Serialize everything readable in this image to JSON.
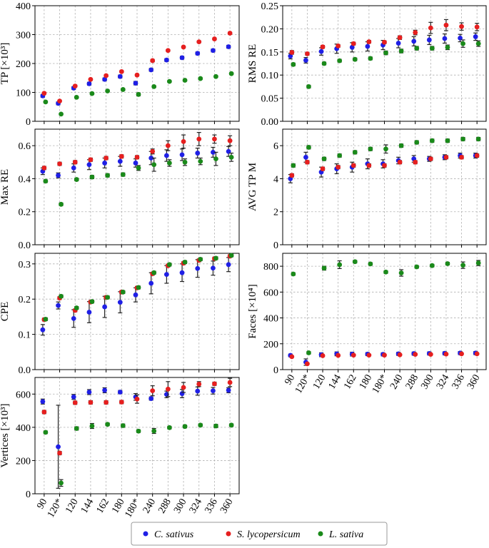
{
  "chart_data": {
    "type": "scatter",
    "legend": {
      "placement": "bottom-center",
      "items": [
        {
          "name": "C. sativus",
          "color": "#1f1fe6"
        },
        {
          "name": "S. lycopersicum",
          "color": "#e61f1f"
        },
        {
          "name": "L. sativa",
          "color": "#1a8a1a"
        }
      ]
    },
    "series_names": [
      "C. sativus",
      "S. lycopersicum",
      "L. sativa"
    ],
    "series_colors": [
      "#1f1fe6",
      "#e61f1f",
      "#1a8a1a"
    ],
    "x_categories": [
      "90",
      "120*",
      "120",
      "144",
      "162",
      "180",
      "180*",
      "240",
      "288",
      "300",
      "324",
      "336",
      "360"
    ],
    "panels": [
      {
        "id": "tp",
        "ylabel": "TP [×10³]",
        "ylim": [
          0,
          400
        ],
        "yticks": [
          0,
          100,
          200,
          300,
          400
        ],
        "ytick_labels": [
          "0",
          "100",
          "200",
          "300",
          "400"
        ],
        "series": [
          {
            "name": "C. sativus",
            "values": [
              88,
              62,
              115,
              130,
              145,
              155,
              132,
              178,
              212,
              220,
              235,
              245,
              258
            ],
            "errors": [
              5,
              5,
              5,
              5,
              5,
              5,
              6,
              5,
              5,
              5,
              5,
              5,
              5
            ]
          },
          {
            "name": "S. lycopersicum",
            "values": [
              97,
              70,
              122,
              145,
              158,
              172,
              160,
              210,
              245,
              257,
              275,
              285,
              305
            ],
            "errors": [
              3,
              3,
              3,
              3,
              3,
              3,
              3,
              4,
              3,
              3,
              3,
              3,
              3
            ]
          },
          {
            "name": "L. sativa",
            "values": [
              67,
              25,
              83,
              96,
              105,
              110,
              93,
              120,
              138,
              142,
              148,
              155,
              165
            ],
            "errors": [
              3,
              3,
              3,
              3,
              3,
              3,
              5,
              3,
              3,
              3,
              3,
              3,
              3
            ]
          }
        ]
      },
      {
        "id": "rms",
        "ylabel": "RMS RE",
        "ylim": [
          0,
          0.25
        ],
        "yticks": [
          0,
          0.05,
          0.1,
          0.15,
          0.2,
          0.25
        ],
        "ytick_labels": [
          "0.00",
          "0.05",
          "0.10",
          "0.15",
          "0.20",
          "0.25"
        ],
        "series": [
          {
            "name": "C. sativus",
            "values": [
              0.141,
              0.132,
              0.151,
              0.157,
              0.16,
              0.162,
              0.165,
              0.169,
              0.173,
              0.176,
              0.179,
              0.18,
              0.183
            ],
            "errors": [
              0.006,
              0.006,
              0.008,
              0.01,
              0.01,
              0.01,
              0.01,
              0.01,
              0.01,
              0.01,
              0.01,
              0.008,
              0.008
            ]
          },
          {
            "name": "S. lycopersicum",
            "values": [
              0.149,
              0.146,
              0.161,
              0.163,
              0.168,
              0.172,
              0.171,
              0.181,
              0.192,
              0.202,
              0.208,
              0.205,
              0.204
            ],
            "errors": [
              0.004,
              0.003,
              0.003,
              0.003,
              0.003,
              0.003,
              0.003,
              0.004,
              0.005,
              0.012,
              0.012,
              0.008,
              0.008
            ]
          },
          {
            "name": "L. sativa",
            "values": [
              0.123,
              0.075,
              0.125,
              0.131,
              0.134,
              0.136,
              0.148,
              0.152,
              0.158,
              0.158,
              0.16,
              0.168,
              0.168
            ],
            "errors": [
              0.003,
              0.003,
              0.003,
              0.003,
              0.003,
              0.003,
              0.004,
              0.004,
              0.004,
              0.004,
              0.005,
              0.008,
              0.006
            ]
          }
        ]
      },
      {
        "id": "maxre",
        "ylabel": "Max RE",
        "ylim": [
          0,
          0.7
        ],
        "yticks": [
          0,
          0.2,
          0.4,
          0.6
        ],
        "ytick_labels": [
          "0.0",
          "0.2",
          "0.4",
          "0.6"
        ],
        "series": [
          {
            "name": "C. sativus",
            "values": [
              0.445,
              0.42,
              0.465,
              0.485,
              0.495,
              0.505,
              0.495,
              0.525,
              0.54,
              0.545,
              0.555,
              0.56,
              0.565
            ],
            "errors": [
              0.02,
              0.015,
              0.025,
              0.03,
              0.03,
              0.03,
              0.025,
              0.04,
              0.035,
              0.035,
              0.03,
              0.03,
              0.03
            ]
          },
          {
            "name": "S. lycopersicum",
            "values": [
              0.465,
              0.49,
              0.5,
              0.515,
              0.525,
              0.535,
              0.53,
              0.565,
              0.6,
              0.625,
              0.64,
              0.64,
              0.63
            ],
            "errors": [
              0.01,
              0.01,
              0.01,
              0.01,
              0.01,
              0.01,
              0.01,
              0.015,
              0.03,
              0.04,
              0.04,
              0.025,
              0.03
            ]
          },
          {
            "name": "L. sativa",
            "values": [
              0.385,
              0.245,
              0.395,
              0.41,
              0.42,
              0.425,
              0.465,
              0.485,
              0.495,
              0.5,
              0.505,
              0.52,
              0.53
            ],
            "errors": [
              0.008,
              0.008,
              0.008,
              0.01,
              0.01,
              0.01,
              0.015,
              0.04,
              0.02,
              0.02,
              0.02,
              0.04,
              0.025
            ]
          }
        ]
      },
      {
        "id": "avgtpm",
        "ylabel": "AVG TP M",
        "ylim": [
          0,
          7
        ],
        "yticks": [
          0,
          2,
          4,
          6
        ],
        "ytick_labels": [
          "0",
          "2",
          "4",
          "6"
        ],
        "series": [
          {
            "name": "C. sativus",
            "values": [
              4.0,
              5.3,
              4.4,
              4.6,
              4.7,
              4.9,
              4.9,
              5.1,
              5.2,
              5.2,
              5.3,
              5.4,
              5.4
            ],
            "errors": [
              0.25,
              0.3,
              0.3,
              0.3,
              0.3,
              0.3,
              0.25,
              0.2,
              0.2,
              0.15,
              0.15,
              0.15,
              0.15
            ]
          },
          {
            "name": "S. lycopersicum",
            "values": [
              4.2,
              5.0,
              4.6,
              4.7,
              4.8,
              4.8,
              4.8,
              5.0,
              5.0,
              5.2,
              5.3,
              5.3,
              5.4
            ],
            "errors": [
              0.1,
              0.1,
              0.1,
              0.1,
              0.1,
              0.1,
              0.1,
              0.1,
              0.1,
              0.1,
              0.1,
              0.1,
              0.1
            ]
          },
          {
            "name": "L. sativa",
            "values": [
              4.8,
              5.9,
              5.2,
              5.4,
              5.6,
              5.8,
              5.8,
              6.0,
              6.2,
              6.3,
              6.3,
              6.4,
              6.4
            ],
            "errors": [
              0.1,
              0.1,
              0.1,
              0.1,
              0.1,
              0.1,
              0.25,
              0.1,
              0.1,
              0.1,
              0.1,
              0.1,
              0.1
            ]
          }
        ]
      },
      {
        "id": "cpe",
        "ylabel": "CPE",
        "ylim": [
          0,
          0.33
        ],
        "yticks": [
          0,
          0.1,
          0.2,
          0.3
        ],
        "ytick_labels": [
          "0.0",
          "0.1",
          "0.2",
          "0.3"
        ],
        "series": [
          {
            "name": "C. sativus",
            "values": [
              0.113,
              0.182,
              0.145,
              0.163,
              0.178,
              0.191,
              0.212,
              0.245,
              0.27,
              0.275,
              0.287,
              0.288,
              0.298
            ],
            "errors": [
              0.015,
              0.01,
              0.025,
              0.03,
              0.03,
              0.03,
              0.02,
              0.03,
              0.025,
              0.025,
              0.025,
              0.02,
              0.02
            ]
          },
          {
            "name": "S. lycopersicum",
            "values": [
              0.142,
              0.203,
              0.168,
              0.192,
              0.205,
              0.22,
              0.232,
              0.272,
              0.295,
              0.302,
              0.31,
              0.315,
              0.322
            ],
            "errors": [
              0.004,
              0.004,
              0.004,
              0.004,
              0.004,
              0.004,
              0.004,
              0.004,
              0.004,
              0.004,
              0.004,
              0.004,
              0.004
            ]
          },
          {
            "name": "L. sativa",
            "values": [
              0.143,
              0.208,
              0.175,
              0.193,
              0.205,
              0.22,
              0.233,
              0.275,
              0.298,
              0.305,
              0.313,
              0.316,
              0.324
            ],
            "errors": [
              0.004,
              0.004,
              0.004,
              0.004,
              0.004,
              0.004,
              0.004,
              0.004,
              0.004,
              0.004,
              0.004,
              0.004,
              0.004
            ]
          }
        ]
      },
      {
        "id": "faces",
        "ylabel": "Faces [×10⁴]",
        "ylim": [
          0,
          900
        ],
        "yticks": [
          0,
          200,
          400,
          600,
          800
        ],
        "ytick_labels": [
          "0",
          "200",
          "400",
          "600",
          "800"
        ],
        "series": [
          {
            "name": "C. sativus",
            "values": [
              110,
              58,
              115,
              122,
              120,
              120,
              118,
              122,
              124,
              125,
              126,
              128,
              128
            ],
            "errors": [
              10,
              25,
              15,
              15,
              15,
              12,
              12,
              12,
              12,
              12,
              12,
              12,
              12
            ]
          },
          {
            "name": "S. lycopersicum",
            "values": [
              100,
              45,
              108,
              110,
              112,
              112,
              112,
              115,
              118,
              118,
              120,
              122,
              122
            ],
            "errors": [
              5,
              5,
              5,
              5,
              5,
              5,
              5,
              5,
              5,
              5,
              5,
              5,
              5
            ]
          },
          {
            "name": "L. sativa",
            "values": [
              740,
              130,
              785,
              812,
              835,
              818,
              755,
              748,
              795,
              805,
              820,
              808,
              825
            ],
            "errors": [
              10,
              10,
              15,
              30,
              10,
              10,
              10,
              25,
              10,
              10,
              10,
              25,
              20
            ]
          }
        ]
      },
      {
        "id": "vertices",
        "ylabel": "Vertices [×10³]",
        "ylim": [
          0,
          700
        ],
        "yticks": [
          0,
          200,
          400,
          600
        ],
        "ytick_labels": [
          "0",
          "200",
          "400",
          "600"
        ],
        "series": [
          {
            "name": "C. sativus",
            "values": [
              555,
              283,
              583,
              612,
              623,
              612,
              583,
              573,
              598,
              603,
              618,
              620,
              623
            ],
            "errors": [
              15,
              250,
              15,
              15,
              15,
              10,
              20,
              10,
              20,
              25,
              25,
              20,
              15
            ]
          },
          {
            "name": "S. lycopersicum",
            "values": [
              492,
              245,
              548,
              550,
              550,
              552,
              570,
              620,
              630,
              640,
              660,
              662,
              670
            ],
            "errors": [
              10,
              10,
              10,
              10,
              10,
              10,
              25,
              30,
              45,
              30,
              15,
              10,
              25
            ]
          },
          {
            "name": "L. sativa",
            "values": [
              370,
              65,
              393,
              408,
              418,
              410,
              377,
              378,
              398,
              405,
              413,
              408,
              413
            ],
            "errors": [
              8,
              20,
              10,
              15,
              8,
              10,
              8,
              15,
              8,
              8,
              8,
              10,
              8
            ]
          }
        ]
      }
    ]
  }
}
